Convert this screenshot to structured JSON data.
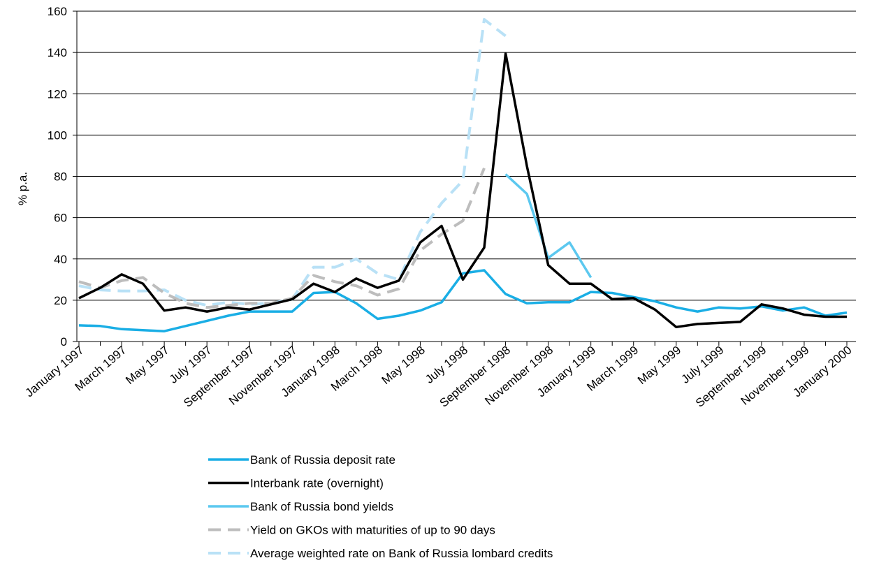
{
  "chart_data": {
    "type": "line",
    "title": "",
    "xlabel": "",
    "ylabel": "% p.a.",
    "ylim": [
      0,
      160
    ],
    "yticks": [
      0,
      20,
      40,
      60,
      80,
      100,
      120,
      140,
      160
    ],
    "grid": true,
    "legend_position": "bottom",
    "categories": [
      "January 1997",
      "February 1997",
      "March 1997",
      "April 1997",
      "May 1997",
      "June 1997",
      "July 1997",
      "August 1997",
      "September 1997",
      "October 1997",
      "November 1997",
      "December 1997",
      "January 1998",
      "February 1998",
      "March 1998",
      "April 1998",
      "May 1998",
      "June 1998",
      "July 1998",
      "August 1998",
      "September 1998",
      "October 1998",
      "November 1998",
      "December 1998",
      "January 1999",
      "February 1999",
      "March 1999",
      "April 1999",
      "May 1999",
      "June 1999",
      "July 1999",
      "August 1999",
      "September 1999",
      "October 1999",
      "November 1999",
      "December 1999",
      "January 2000"
    ],
    "x_tick_labels": [
      "January 1997",
      "March 1997",
      "May 1997",
      "July 1997",
      "September 1997",
      "November 1997",
      "January 1998",
      "March 1998",
      "May 1998",
      "July 1998",
      "September 1998",
      "November 1998",
      "January 1999",
      "March 1999",
      "May 1999",
      "July 1999",
      "September 1999",
      "November 1999",
      "January 2000"
    ],
    "series": [
      {
        "name": "Bank of Russia deposit rate",
        "color": "#1aaee5",
        "dash": "solid",
        "values": [
          7.8,
          7.5,
          6,
          5.5,
          5,
          7.5,
          10,
          12.5,
          14.5,
          14.5,
          14.5,
          23.5,
          24,
          18.5,
          11,
          12.5,
          15,
          19,
          33,
          34.5,
          23,
          18.5,
          19,
          19,
          24,
          23.5,
          21.5,
          19.5,
          16.5,
          14.5,
          16.5,
          16,
          17,
          15,
          16.5,
          12.5,
          14
        ]
      },
      {
        "name": "Interbank rate (overnight)",
        "color": "#000000",
        "dash": "solid",
        "values": [
          21,
          26,
          32.5,
          28,
          15,
          16.5,
          14.5,
          16.5,
          15.5,
          18,
          20.5,
          28,
          24,
          30.5,
          26,
          29.5,
          48,
          56,
          30,
          45.5,
          139.5,
          85,
          37,
          28,
          28,
          20.5,
          21,
          15.5,
          7,
          8.5,
          9,
          9.5,
          18,
          16,
          13,
          12,
          12
        ]
      },
      {
        "name": " Bank of Russia bond yields",
        "color": "#5cc8ef",
        "dash": "solid",
        "values": [
          null,
          null,
          null,
          null,
          null,
          null,
          null,
          null,
          null,
          null,
          null,
          null,
          null,
          null,
          null,
          null,
          null,
          null,
          null,
          null,
          81,
          71.5,
          40.5,
          48,
          31,
          null,
          null,
          null,
          null,
          null,
          null,
          null,
          null,
          null,
          null,
          null,
          null
        ]
      },
      {
        "name": "Yield on GKOs with maturities of up to 90 days",
        "color": "#bdbdbd",
        "dash": "dashed",
        "values": [
          29,
          26,
          29.5,
          31,
          23.5,
          18.5,
          16.5,
          17.5,
          18.5,
          18.5,
          21,
          32,
          29,
          27,
          22.5,
          25.5,
          44,
          52,
          58.5,
          84,
          null,
          null,
          null,
          null,
          null,
          null,
          null,
          null,
          null,
          null,
          null,
          null,
          null,
          null,
          null,
          null,
          null
        ]
      },
      {
        "name": "Average weighted rate on Bank of Russia lombard credits",
        "color": "#b9e1f6",
        "dash": "dashed",
        "values": [
          27,
          25,
          24.5,
          24.5,
          25,
          20,
          17.5,
          19,
          18,
          18.5,
          20.5,
          36,
          36,
          40,
          33,
          30,
          53,
          67,
          78,
          156,
          148,
          null,
          null,
          null,
          null,
          null,
          null,
          null,
          null,
          null,
          null,
          null,
          null,
          null,
          null,
          null,
          null
        ]
      }
    ]
  }
}
